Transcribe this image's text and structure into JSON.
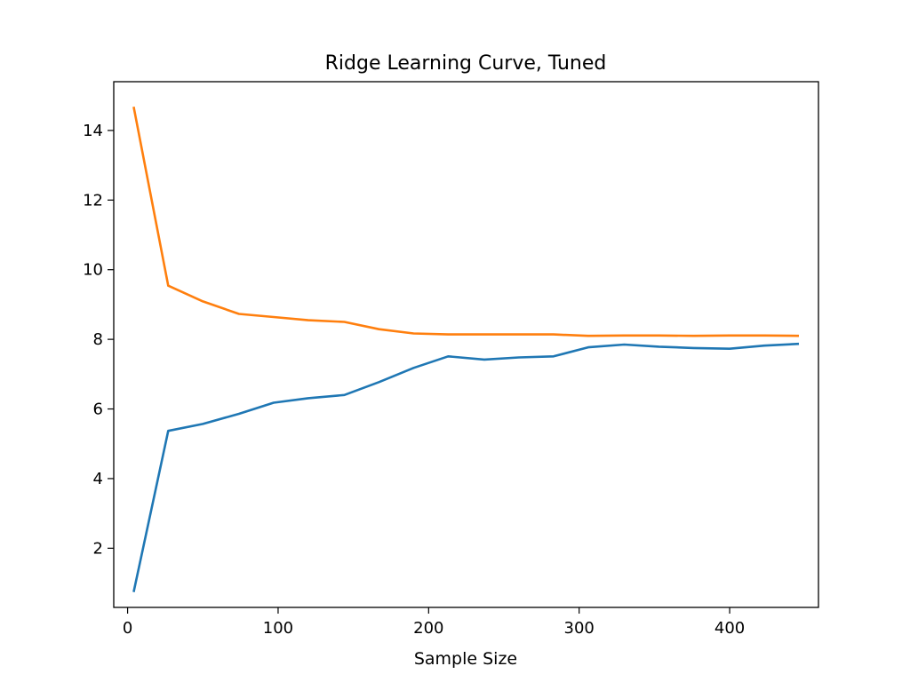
{
  "chart_data": {
    "type": "line",
    "title": "Ridge Learning Curve, Tuned",
    "xlabel": "Sample Size",
    "ylabel": "",
    "xlim": [
      -9.2,
      459
    ],
    "ylim": [
      0.3,
      15.4
    ],
    "xticks": [
      0,
      100,
      200,
      300,
      400
    ],
    "yticks": [
      2,
      4,
      6,
      8,
      10,
      12,
      14
    ],
    "grid": false,
    "legend": "none",
    "series": [
      {
        "color": "#1f77b4",
        "x": [
          4,
          27,
          50,
          74,
          97,
          120,
          144,
          167,
          190,
          213,
          237,
          260,
          283,
          306,
          330,
          353,
          376,
          400,
          423,
          446
        ],
        "y": [
          0.74,
          5.37,
          5.57,
          5.86,
          6.18,
          6.31,
          6.4,
          6.77,
          7.18,
          7.51,
          7.42,
          7.48,
          7.51,
          7.77,
          7.85,
          7.79,
          7.75,
          7.73,
          7.82,
          7.87
        ]
      },
      {
        "color": "#ff7f0e",
        "x": [
          4,
          27,
          50,
          74,
          97,
          120,
          144,
          167,
          190,
          213,
          237,
          260,
          283,
          306,
          330,
          353,
          376,
          400,
          423,
          446
        ],
        "y": [
          14.68,
          9.54,
          9.09,
          8.73,
          8.64,
          8.55,
          8.5,
          8.29,
          8.17,
          8.14,
          8.14,
          8.14,
          8.14,
          8.1,
          8.11,
          8.11,
          8.1,
          8.11,
          8.11,
          8.1
        ]
      }
    ]
  }
}
